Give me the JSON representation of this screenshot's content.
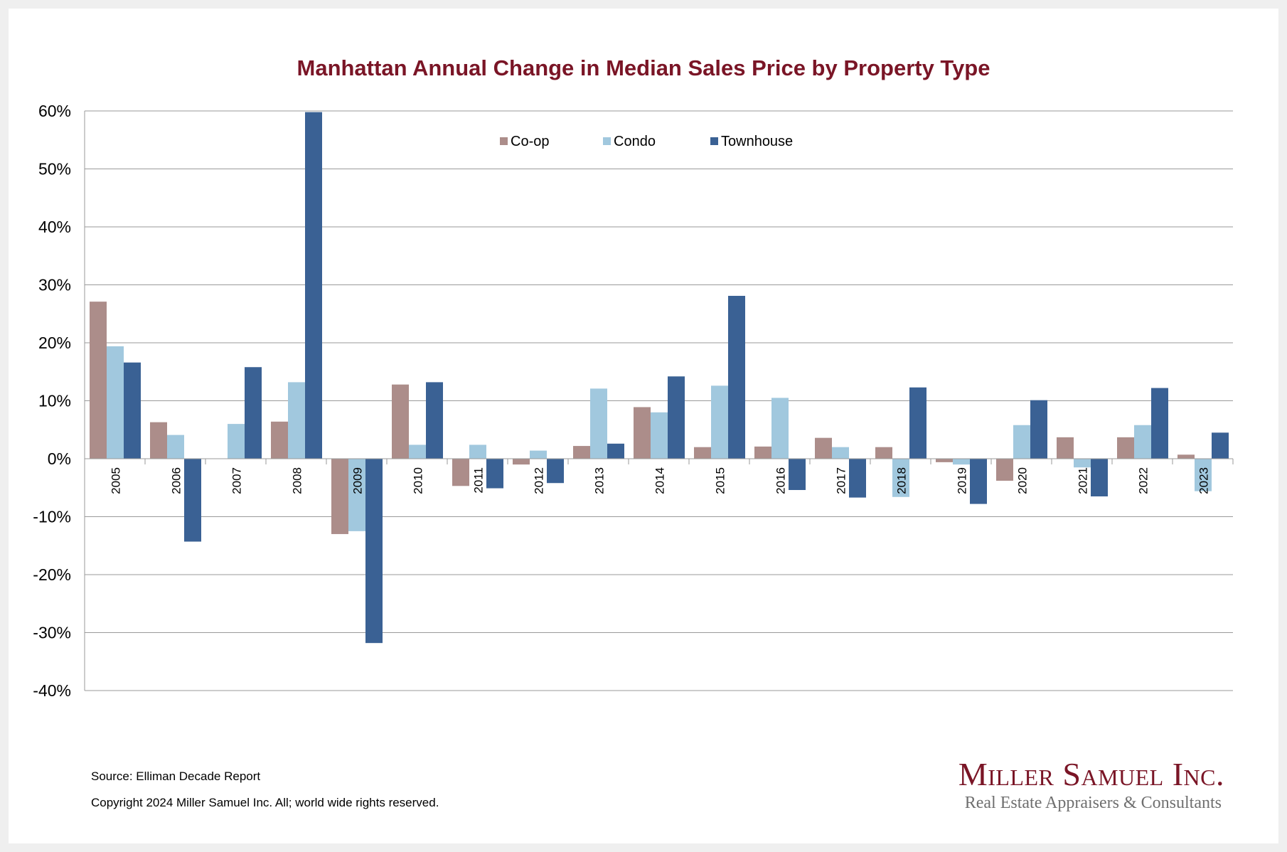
{
  "chart_data": {
    "type": "bar",
    "title": "Manhattan Annual Change in Median Sales Price by Property Type",
    "categories": [
      "2005",
      "2006",
      "2007",
      "2008",
      "2009",
      "2010",
      "2011",
      "2012",
      "2013",
      "2014",
      "2015",
      "2016",
      "2017",
      "2018",
      "2019",
      "2020",
      "2021",
      "2022",
      "2023"
    ],
    "series": [
      {
        "name": "Co-op",
        "color": "#ac8d8a",
        "values": [
          27.1,
          6.3,
          0.0,
          6.4,
          -13.0,
          12.8,
          -4.7,
          -1.0,
          2.2,
          8.9,
          2.0,
          2.1,
          3.6,
          2.0,
          -0.6,
          -3.8,
          3.7,
          3.7,
          0.7
        ]
      },
      {
        "name": "Condo",
        "color": "#a1c8de",
        "values": [
          19.4,
          4.1,
          6.0,
          13.2,
          -12.5,
          2.4,
          2.4,
          1.4,
          12.1,
          8.0,
          12.6,
          10.5,
          2.0,
          -6.6,
          -1.0,
          5.8,
          -1.5,
          5.8,
          -5.6
        ]
      },
      {
        "name": "Townhouse",
        "color": "#3a6194",
        "values": [
          16.6,
          -14.3,
          15.8,
          59.8,
          -31.8,
          13.2,
          -5.1,
          -4.2,
          2.6,
          14.2,
          28.1,
          -5.4,
          -6.7,
          12.3,
          -7.8,
          10.1,
          -6.5,
          12.2,
          4.5
        ]
      }
    ],
    "ylim": [
      -40,
      60
    ],
    "ytick_step": 10,
    "ytick_labels": [
      "-40%",
      "-30%",
      "-20%",
      "-10%",
      "0%",
      "10%",
      "20%",
      "30%",
      "40%",
      "50%",
      "60%"
    ],
    "grid": true,
    "legend_position": "top-center",
    "title_color": "#7a1526"
  },
  "footer": {
    "source": "Source: Elliman Decade Report",
    "copyright": "Copyright 2024 Miller Samuel Inc.  All; world wide rights reserved."
  },
  "logo": {
    "name": "Miller Samuel Inc.",
    "tagline": "Real Estate Appraisers & Consultants"
  }
}
